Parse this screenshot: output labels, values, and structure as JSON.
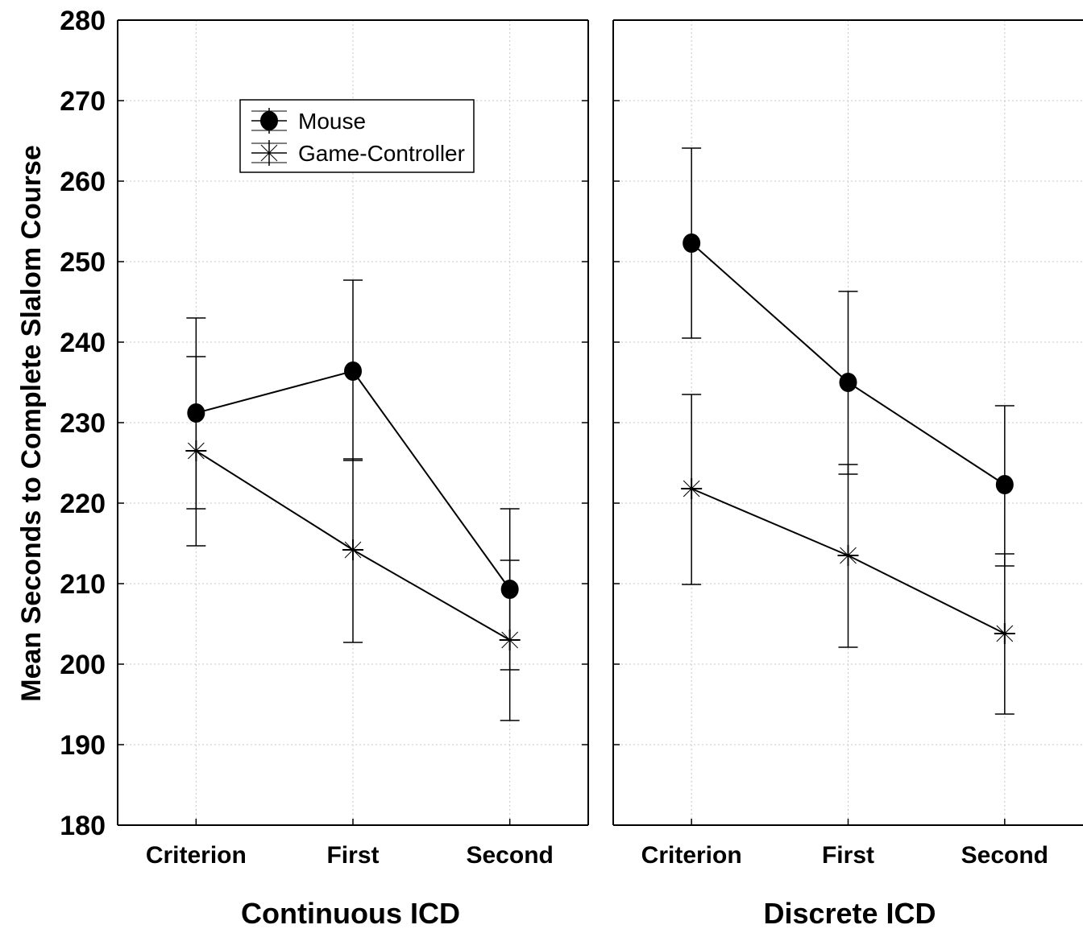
{
  "chart_data": {
    "type": "line",
    "ylabel": "Mean Seconds to Complete Slalom Course",
    "ylim": [
      180,
      280
    ],
    "yticks": [
      180,
      190,
      200,
      210,
      220,
      230,
      240,
      250,
      260,
      270,
      280
    ],
    "ytick_labels": [
      "180",
      "190",
      "200",
      "210",
      "220",
      "230",
      "240",
      "250",
      "260",
      "270",
      "280"
    ],
    "categories": [
      "Criterion",
      "First",
      "Second"
    ],
    "grid": true,
    "legend": {
      "placement": "top-left",
      "entries": [
        "Mouse",
        "Game-Controller"
      ]
    },
    "panels": [
      {
        "label": "Continuous ICD",
        "series": [
          {
            "name": "Mouse",
            "marker": "circle",
            "values": [
              231.2,
              236.4,
              209.3
            ],
            "lower": [
              219.3,
              225.3,
              199.3
            ],
            "upper": [
              243.0,
              247.7,
              219.3
            ]
          },
          {
            "name": "Game-Controller",
            "marker": "star",
            "values": [
              226.5,
              214.2,
              203.0
            ],
            "lower": [
              214.7,
              202.7,
              193.0
            ],
            "upper": [
              238.2,
              225.5,
              212.9
            ]
          }
        ]
      },
      {
        "label": "Discrete ICD",
        "series": [
          {
            "name": "Mouse",
            "marker": "circle",
            "values": [
              252.3,
              235.0,
              222.3
            ],
            "lower": [
              240.5,
              223.6,
              212.2
            ],
            "upper": [
              264.1,
              246.3,
              232.1
            ]
          },
          {
            "name": "Game-Controller",
            "marker": "star",
            "values": [
              221.8,
              213.5,
              203.8
            ],
            "lower": [
              209.9,
              202.1,
              193.8
            ],
            "upper": [
              233.5,
              224.8,
              213.7
            ]
          }
        ]
      }
    ]
  }
}
